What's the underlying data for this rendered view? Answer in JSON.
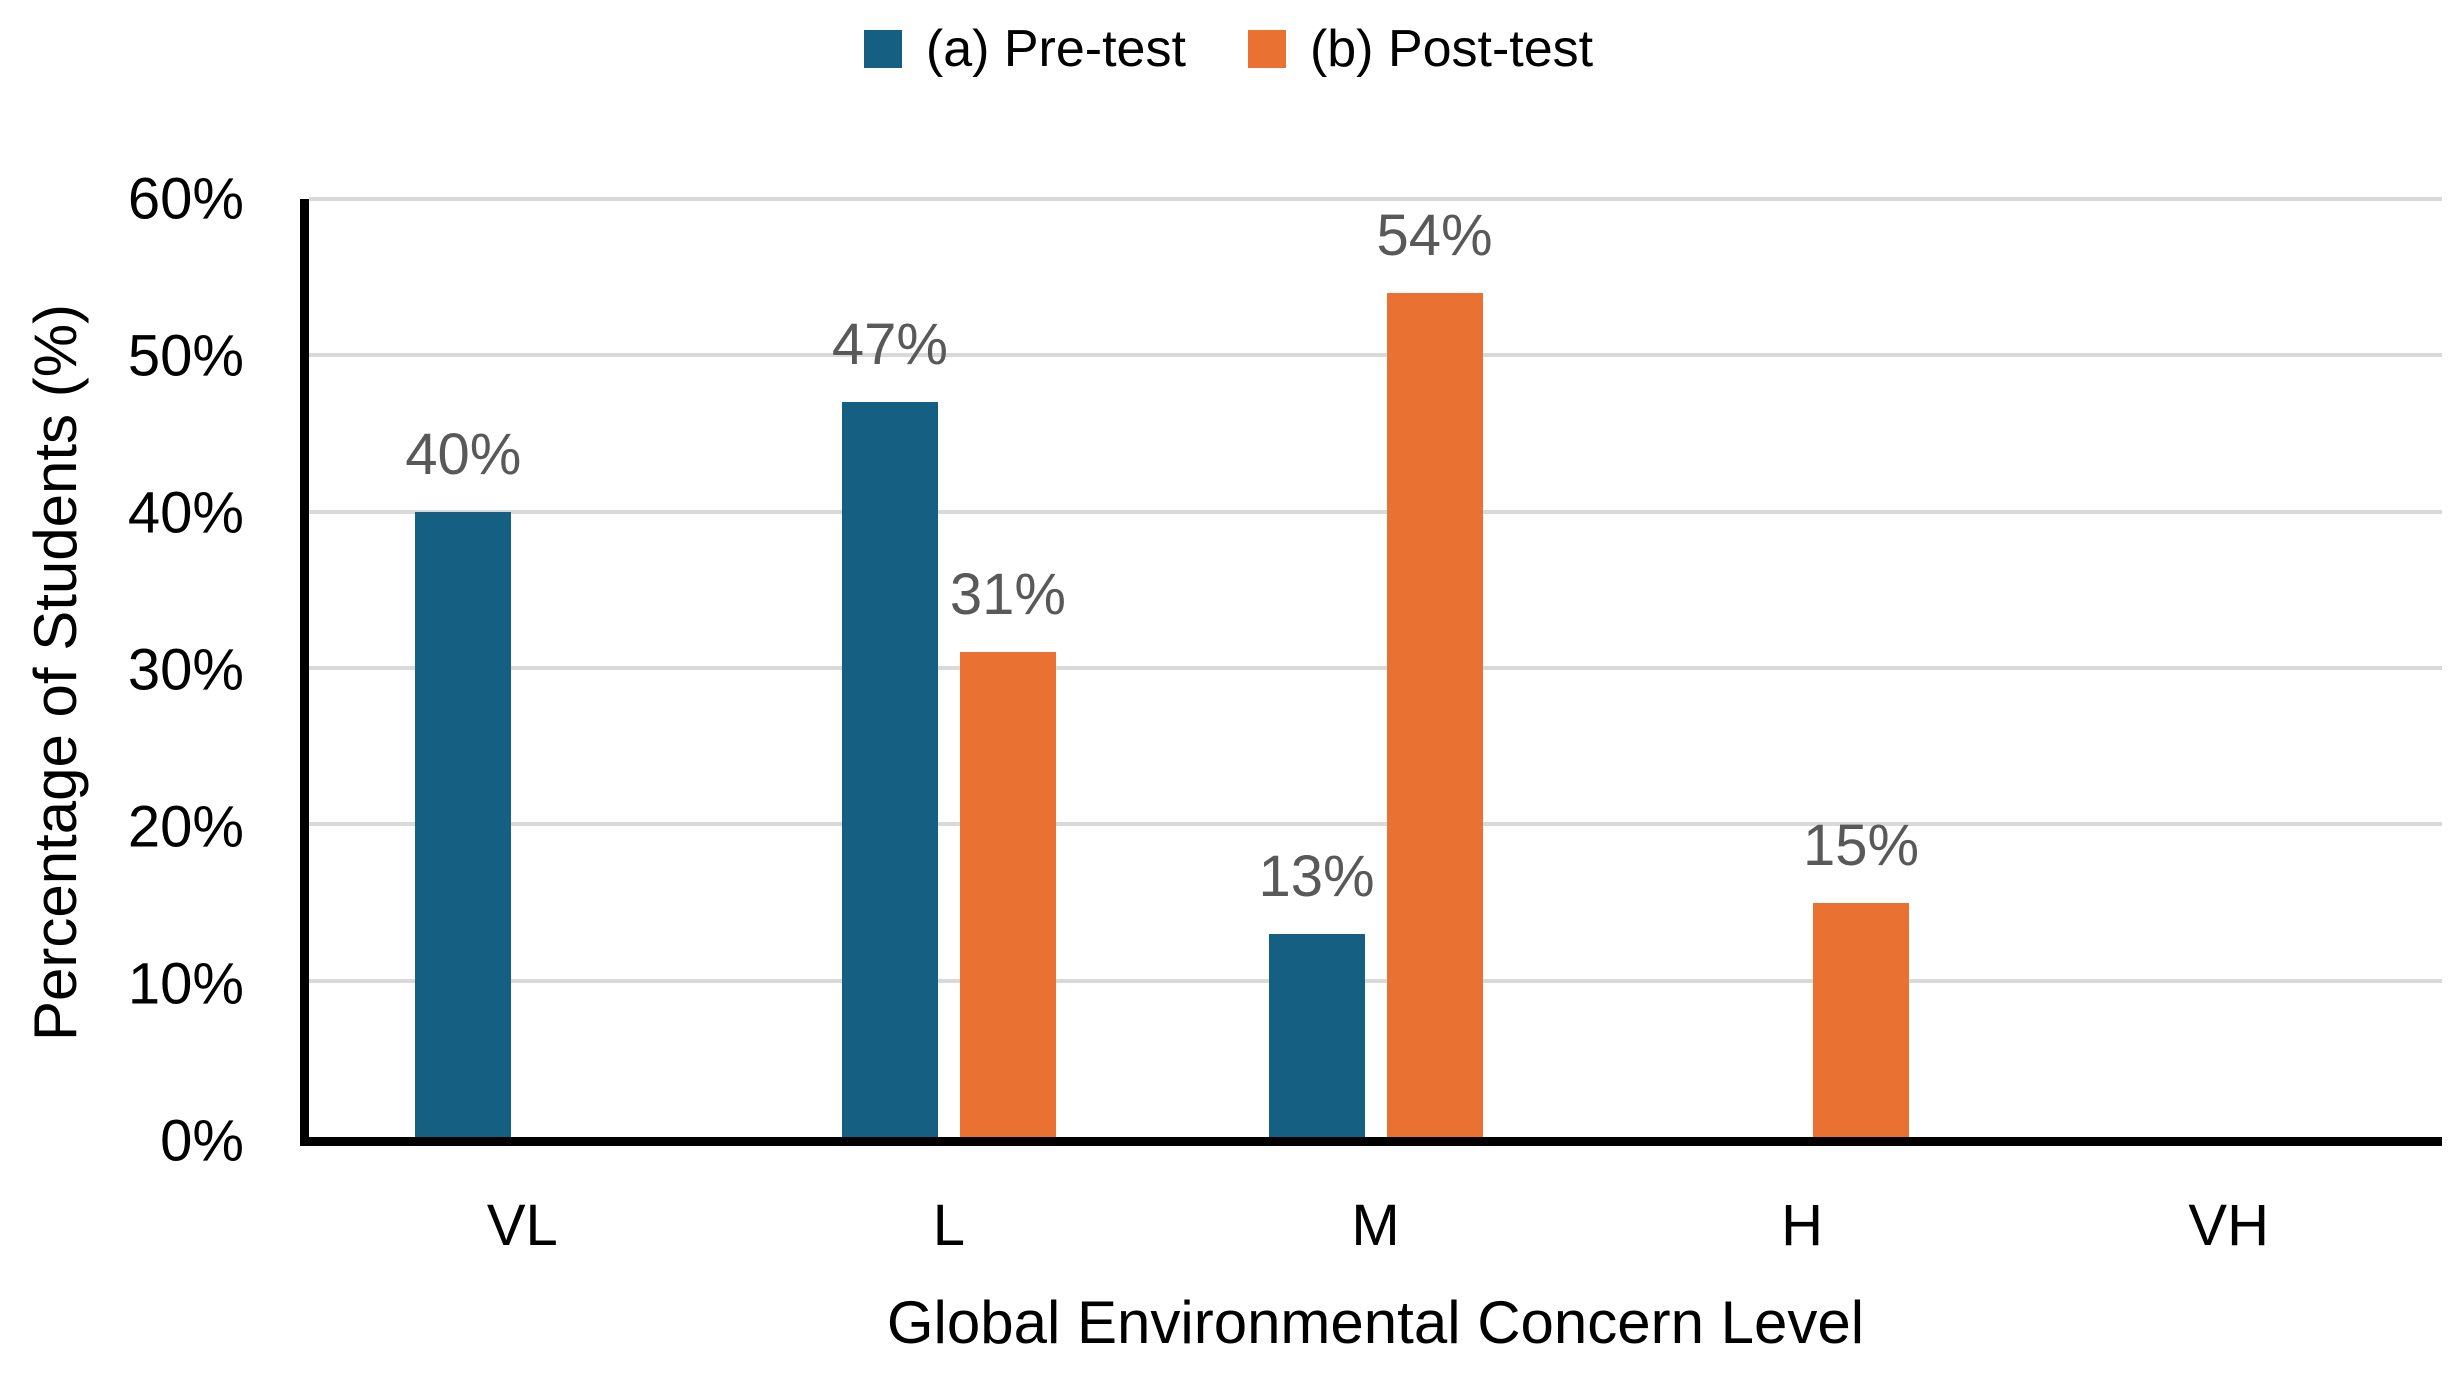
{
  "chart_data": {
    "type": "bar",
    "title": "",
    "categories": [
      "VL",
      "L",
      "M",
      "H",
      "VH"
    ],
    "series": [
      {
        "name": "(a) Pre-test",
        "color": "#156082",
        "values": [
          40,
          47,
          13,
          0,
          0
        ],
        "labels": [
          "40%",
          "47%",
          "13%",
          "",
          ""
        ]
      },
      {
        "name": "(b) Post-test",
        "color": "#E97132",
        "values": [
          0,
          31,
          54,
          15,
          0
        ],
        "labels": [
          "",
          "31%",
          "54%",
          "15%",
          ""
        ]
      }
    ],
    "xlabel": "Global Environmental Concern Level",
    "ylabel": "Percentage of Students (%)",
    "ylim": [
      0,
      60
    ],
    "ytick_step": 10,
    "ytick_labels": [
      "0%",
      "10%",
      "20%",
      "30%",
      "40%",
      "50%",
      "60%"
    ],
    "grid": true,
    "legend_position": "top",
    "colors": {
      "pre_test": "#156082",
      "post_test": "#E97132",
      "gridline": "#D9D9D9",
      "axis": "#000000",
      "data_label": "#595959",
      "tick_label": "#000000"
    }
  }
}
